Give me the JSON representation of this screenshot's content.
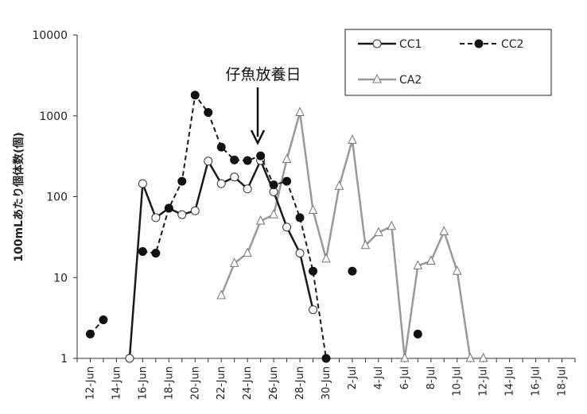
{
  "chart_data": {
    "type": "line",
    "title": "",
    "xlabel": "",
    "ylabel": "100mLあたり個体数(個)",
    "yscale": "log",
    "ylim": [
      1,
      10000
    ],
    "y_ticks": [
      "1",
      "10",
      "100",
      "1000",
      "10000"
    ],
    "x_range": [
      "2023-06-11",
      "2023-07-19"
    ],
    "x_tick_labels": [
      "12-Jun",
      "14-Jun",
      "16-Jun",
      "18-Jun",
      "20-Jun",
      "22-Jun",
      "24-Jun",
      "26-Jun",
      "28-Jun",
      "30-Jun",
      "2-Jul",
      "4-Jul",
      "6-Jul",
      "8-Jul",
      "10-Jul",
      "12-Jul",
      "14-Jul",
      "16-Jul",
      "18-Jul"
    ],
    "x_tick_dates": [
      "2023-06-12",
      "2023-06-14",
      "2023-06-16",
      "2023-06-18",
      "2023-06-20",
      "2023-06-22",
      "2023-06-24",
      "2023-06-26",
      "2023-06-28",
      "2023-06-30",
      "2023-07-02",
      "2023-07-04",
      "2023-07-06",
      "2023-07-08",
      "2023-07-10",
      "2023-07-12",
      "2023-07-14",
      "2023-07-16",
      "2023-07-18"
    ],
    "grid": false,
    "legend_position": "top-right",
    "annotation": {
      "text": "仔魚放養日",
      "date": "2023-06-25"
    },
    "series": [
      {
        "name": "CC1",
        "color": "#1a1a1a",
        "dash": "solid",
        "marker": "circle-open",
        "segments": [
          [
            [
              "2023-06-15",
              1
            ],
            [
              "2023-06-16",
              145
            ],
            [
              "2023-06-17",
              55
            ],
            [
              "2023-06-18",
              72
            ],
            [
              "2023-06-19",
              60
            ],
            [
              "2023-06-20",
              67
            ],
            [
              "2023-06-21",
              275
            ],
            [
              "2023-06-22",
              145
            ],
            [
              "2023-06-23",
              175
            ],
            [
              "2023-06-24",
              125
            ],
            [
              "2023-06-25",
              280
            ],
            [
              "2023-06-26",
              115
            ],
            [
              "2023-06-27",
              42
            ],
            [
              "2023-06-28",
              20
            ],
            [
              "2023-06-29",
              4
            ]
          ]
        ]
      },
      {
        "name": "CC2",
        "color": "#1a1a1a",
        "dash": "dashed",
        "marker": "circle-filled",
        "segments": [
          [
            [
              "2023-06-12",
              2
            ],
            [
              "2023-06-13",
              3
            ]
          ],
          [
            [
              "2023-06-16",
              21
            ],
            [
              "2023-06-17",
              20
            ],
            [
              "2023-06-18",
              72
            ],
            [
              "2023-06-19",
              155
            ],
            [
              "2023-06-20",
              1800
            ],
            [
              "2023-06-21",
              1100
            ],
            [
              "2023-06-22",
              410
            ],
            [
              "2023-06-23",
              285
            ],
            [
              "2023-06-24",
              280
            ],
            [
              "2023-06-25",
              320
            ],
            [
              "2023-06-26",
              140
            ],
            [
              "2023-06-27",
              155
            ],
            [
              "2023-06-28",
              55
            ],
            [
              "2023-06-29",
              12
            ],
            [
              "2023-06-30",
              1
            ]
          ],
          [
            [
              "2023-07-02",
              12
            ]
          ],
          [
            [
              "2023-07-07",
              2
            ]
          ]
        ]
      },
      {
        "name": "CA2",
        "color": "#999999",
        "dash": "solid",
        "marker": "triangle-open",
        "segments": [
          [
            [
              "2023-06-22",
              6
            ],
            [
              "2023-06-23",
              15
            ],
            [
              "2023-06-24",
              20
            ],
            [
              "2023-06-25",
              50
            ],
            [
              "2023-06-26",
              60
            ],
            [
              "2023-06-27",
              290
            ],
            [
              "2023-06-28",
              1100
            ],
            [
              "2023-06-29",
              68
            ],
            [
              "2023-06-30",
              17
            ],
            [
              "2023-07-01",
              135
            ],
            [
              "2023-07-02",
              500
            ],
            [
              "2023-07-03",
              25
            ],
            [
              "2023-07-04",
              36
            ],
            [
              "2023-07-05",
              43
            ],
            [
              "2023-07-06",
              1
            ],
            [
              "2023-07-07",
              14
            ],
            [
              "2023-07-08",
              16
            ],
            [
              "2023-07-09",
              37
            ],
            [
              "2023-07-10",
              12
            ],
            [
              "2023-07-11",
              1
            ],
            [
              "2023-07-12",
              1
            ]
          ]
        ]
      }
    ]
  }
}
